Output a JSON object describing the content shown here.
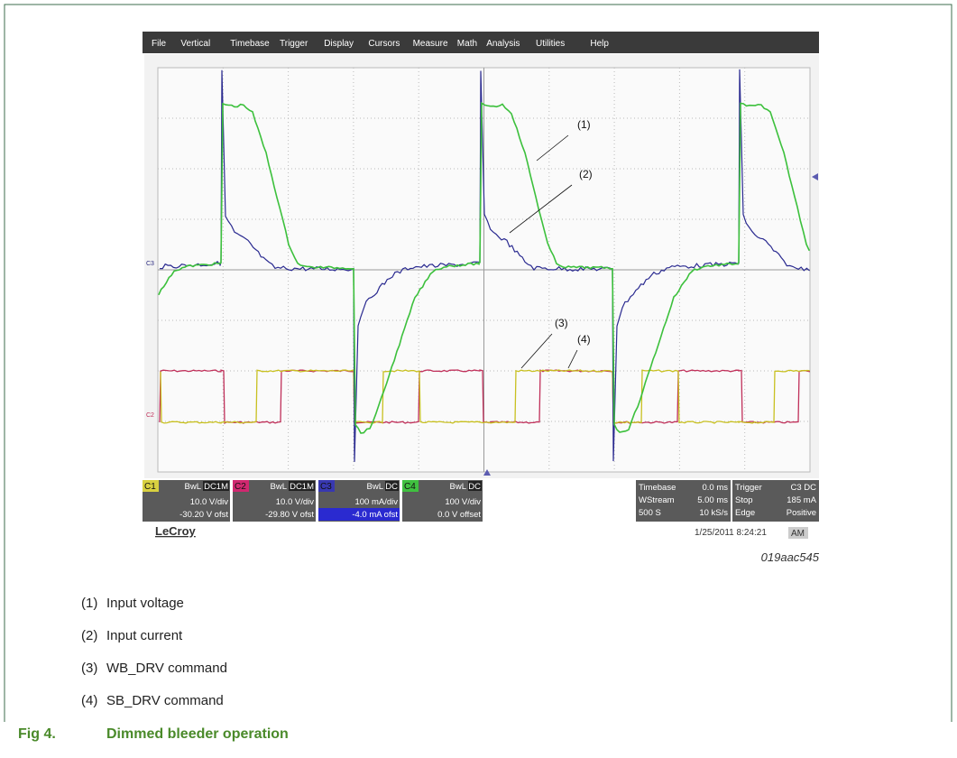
{
  "screen": {
    "menu": [
      "File",
      "Vertical",
      "Timebase",
      "Trigger",
      "Display",
      "Cursors",
      "Measure",
      "Math",
      "Analysis",
      "Utilities",
      "Help"
    ],
    "trace_markers": [
      "C3",
      "C2"
    ],
    "channels": [
      {
        "name": "C1",
        "bwl": "BwL",
        "coupling": "DC1M",
        "scale": "10.0 V/div",
        "offset": "-30.20 V ofst"
      },
      {
        "name": "C2",
        "bwl": "BwL",
        "coupling": "DC1M",
        "scale": "10.0 V/div",
        "offset": "-29.80 V ofst"
      },
      {
        "name": "C3",
        "bwl": "BwL",
        "coupling": "DC",
        "scale": "100 mA/div",
        "offset": "-4.0 mA ofst"
      },
      {
        "name": "C4",
        "bwl": "BwL",
        "coupling": "DC",
        "scale": "100 V/div",
        "offset": "0.0 V offset"
      }
    ],
    "timebase": [
      [
        "Timebase",
        "0.0 ms"
      ],
      [
        "WStream",
        "5.00 ms"
      ],
      [
        "500 S",
        "10 kS/s"
      ]
    ],
    "trigger": [
      [
        "Trigger",
        "C3 DC"
      ],
      [
        "Stop",
        "185 mA"
      ],
      [
        "Edge",
        "Positive"
      ]
    ],
    "brand": "LeCroy",
    "timestamp": "1/25/2011 8:24:21",
    "ampm": "AM"
  },
  "callouts": [
    "(1)",
    "(2)",
    "(3)",
    "(4)"
  ],
  "figure_id": "019aac545",
  "legend": [
    {
      "key": "(1)",
      "text": "Input voltage"
    },
    {
      "key": "(2)",
      "text": "Input current"
    },
    {
      "key": "(3)",
      "text": "WB_DRV command"
    },
    {
      "key": "(4)",
      "text": "SB_DRV command"
    }
  ],
  "caption": {
    "label": "Fig 4.",
    "text": "Dimmed bleeder operation"
  }
}
